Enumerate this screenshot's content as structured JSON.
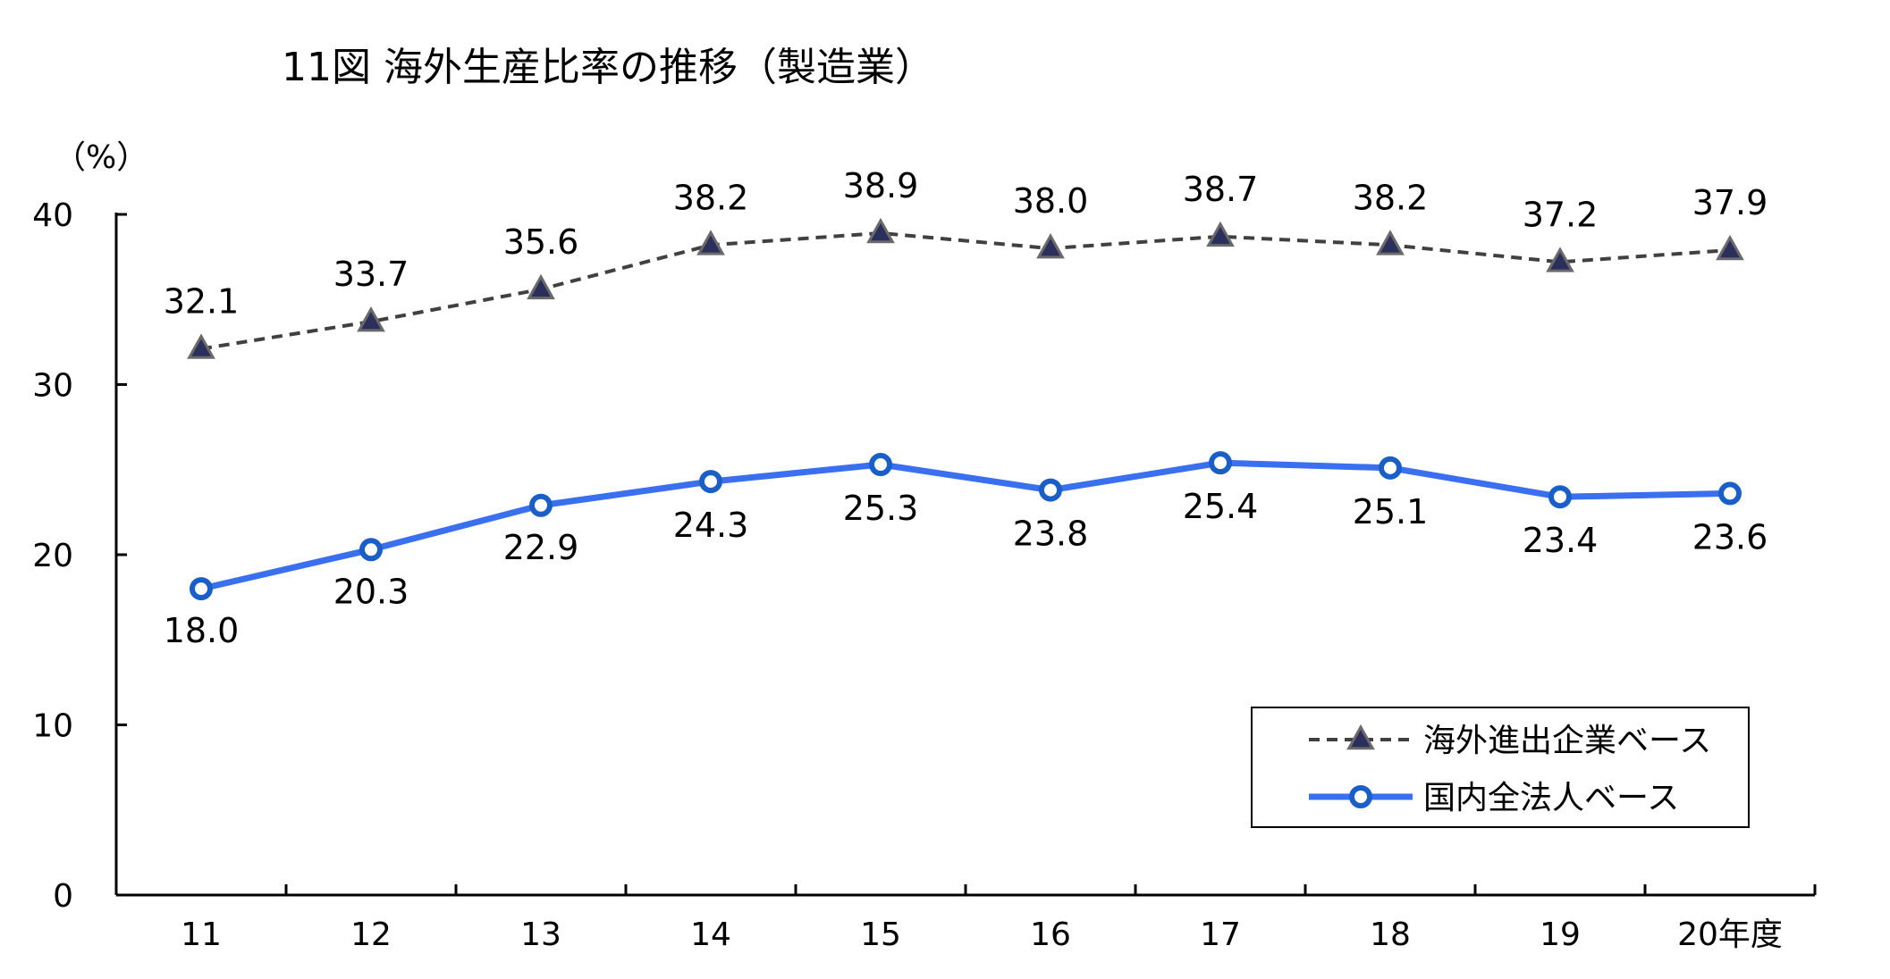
{
  "chart_data": {
    "type": "line",
    "title": "11図 海外生産比率の推移（製造業）",
    "ylabel": "（%）",
    "xlabel": "",
    "categories": [
      "11",
      "12",
      "13",
      "14",
      "15",
      "16",
      "17",
      "18",
      "19",
      "20年度"
    ],
    "ylim": [
      0,
      40
    ],
    "yticks": [
      "0",
      "10",
      "20",
      "30",
      "40"
    ],
    "grid": false,
    "legend_position": "bottom-right",
    "series": [
      {
        "name": "海外進出企業ベース",
        "values": [
          32.1,
          33.7,
          35.6,
          38.2,
          38.9,
          38.0,
          38.7,
          38.2,
          37.2,
          37.9
        ],
        "labels": [
          "32.1",
          "33.7",
          "35.6",
          "38.2",
          "38.9",
          "38.0",
          "38.7",
          "38.2",
          "37.2",
          "37.9"
        ],
        "color": "#404040",
        "marker_color": "#2b2f5c",
        "style": "dashed",
        "marker": "triangle"
      },
      {
        "name": "国内全法人ベース",
        "values": [
          18.0,
          20.3,
          22.9,
          24.3,
          25.3,
          23.8,
          25.4,
          25.1,
          23.4,
          23.6
        ],
        "labels": [
          "18.0",
          "20.3",
          "22.9",
          "24.3",
          "25.3",
          "23.8",
          "25.4",
          "25.1",
          "23.4",
          "23.6"
        ],
        "color": "#3a6ff0",
        "marker_color": "#1a5fc8",
        "style": "solid",
        "marker": "circle"
      }
    ]
  }
}
